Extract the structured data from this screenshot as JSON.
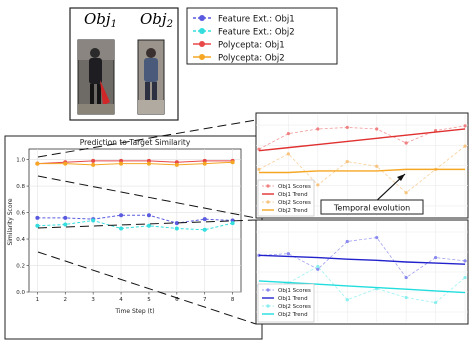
{
  "objects": {
    "obj1_label": "Obj",
    "obj1_sub": "1",
    "obj2_label": "Obj",
    "obj2_sub": "2"
  },
  "top_legend": [
    {
      "label": "Feature Ext.: Obj1",
      "color": "#5a5ae0",
      "dashed": true
    },
    {
      "label": "Feature Ext.: Obj2",
      "color": "#33dddd",
      "dashed": true
    },
    {
      "label": "Polycepta: Obj1",
      "color": "#e84848",
      "dashed": false
    },
    {
      "label": "Polycepta: Obj2",
      "color": "#f5a623",
      "dashed": false
    }
  ],
  "callout_text": "Temporal evolution",
  "chart_data": [
    {
      "type": "line",
      "title": "Prediction to Target Similarity",
      "xlabel": "Time Step (t)",
      "ylabel": "Similarity Score",
      "x": [
        1,
        2,
        3,
        4,
        5,
        6,
        7,
        8
      ],
      "xlim": [
        0.7,
        8.3
      ],
      "ylim": [
        0.0,
        1.08
      ],
      "yticks": [
        0.0,
        0.2,
        0.4,
        0.6,
        0.8,
        1.0
      ],
      "grid": true,
      "series": [
        {
          "name": "Feature Ext.: Obj1",
          "color": "#5a5ae0",
          "dashed": true,
          "values": [
            0.56,
            0.56,
            0.55,
            0.58,
            0.58,
            0.52,
            0.55,
            0.54
          ]
        },
        {
          "name": "Feature Ext.: Obj2",
          "color": "#33dddd",
          "dashed": true,
          "values": [
            0.5,
            0.51,
            0.54,
            0.48,
            0.5,
            0.48,
            0.47,
            0.52
          ]
        },
        {
          "name": "Polycepta: Obj1",
          "color": "#e84848",
          "dashed": false,
          "values": [
            0.97,
            0.98,
            0.99,
            0.99,
            0.99,
            0.98,
            0.99,
            0.99
          ]
        },
        {
          "name": "Polycepta: Obj2",
          "color": "#f5a623",
          "dashed": false,
          "values": [
            0.97,
            0.97,
            0.96,
            0.97,
            0.97,
            0.96,
            0.97,
            0.98
          ]
        }
      ]
    },
    {
      "type": "line",
      "title": "",
      "x": [
        1,
        2,
        3,
        4,
        5,
        6,
        7,
        8
      ],
      "xlim": [
        0.9,
        8.1
      ],
      "ylim": [
        0.94,
        1.005
      ],
      "grid": true,
      "series": [
        {
          "name": "Obj1 Scores",
          "kind": "scores",
          "color": "#f08080",
          "values": [
            0.983,
            0.993,
            0.996,
            0.997,
            0.996,
            0.987,
            0.995,
            0.998
          ]
        },
        {
          "name": "Obj1 Trend",
          "kind": "trend",
          "color": "#e03030",
          "values": [
            0.982,
            0.984,
            0.986,
            0.988,
            0.99,
            0.992,
            0.994,
            0.996
          ]
        },
        {
          "name": "Obj2 Scores",
          "kind": "scores",
          "color": "#f7c480",
          "values": [
            0.97,
            0.98,
            0.96,
            0.975,
            0.972,
            0.955,
            0.97,
            0.985
          ]
        },
        {
          "name": "Obj2 Trend",
          "kind": "trend",
          "color": "#f5a623",
          "values": [
            0.968,
            0.968,
            0.969,
            0.969,
            0.969,
            0.97,
            0.97,
            0.97
          ]
        }
      ]
    },
    {
      "type": "line",
      "title": "",
      "x": [
        1,
        2,
        3,
        4,
        5,
        6,
        7,
        8
      ],
      "xlim": [
        0.9,
        8.1
      ],
      "ylim": [
        0.44,
        0.62
      ],
      "grid": true,
      "series": [
        {
          "name": "Obj1 Scores",
          "kind": "scores",
          "color": "#8888ee",
          "values": [
            0.56,
            0.563,
            0.535,
            0.585,
            0.592,
            0.52,
            0.556,
            0.55
          ]
        },
        {
          "name": "Obj1 Trend",
          "kind": "trend",
          "color": "#2222cc",
          "values": [
            0.56,
            0.558,
            0.556,
            0.553,
            0.551,
            0.548,
            0.546,
            0.544
          ]
        },
        {
          "name": "Obj2 Scores",
          "kind": "scores",
          "color": "#88eeee",
          "values": [
            0.505,
            0.51,
            0.54,
            0.48,
            0.5,
            0.484,
            0.475,
            0.52
          ]
        },
        {
          "name": "Obj2 Trend",
          "kind": "trend",
          "color": "#22dddd",
          "values": [
            0.514,
            0.511,
            0.508,
            0.505,
            0.502,
            0.499,
            0.496,
            0.493
          ]
        }
      ]
    }
  ]
}
